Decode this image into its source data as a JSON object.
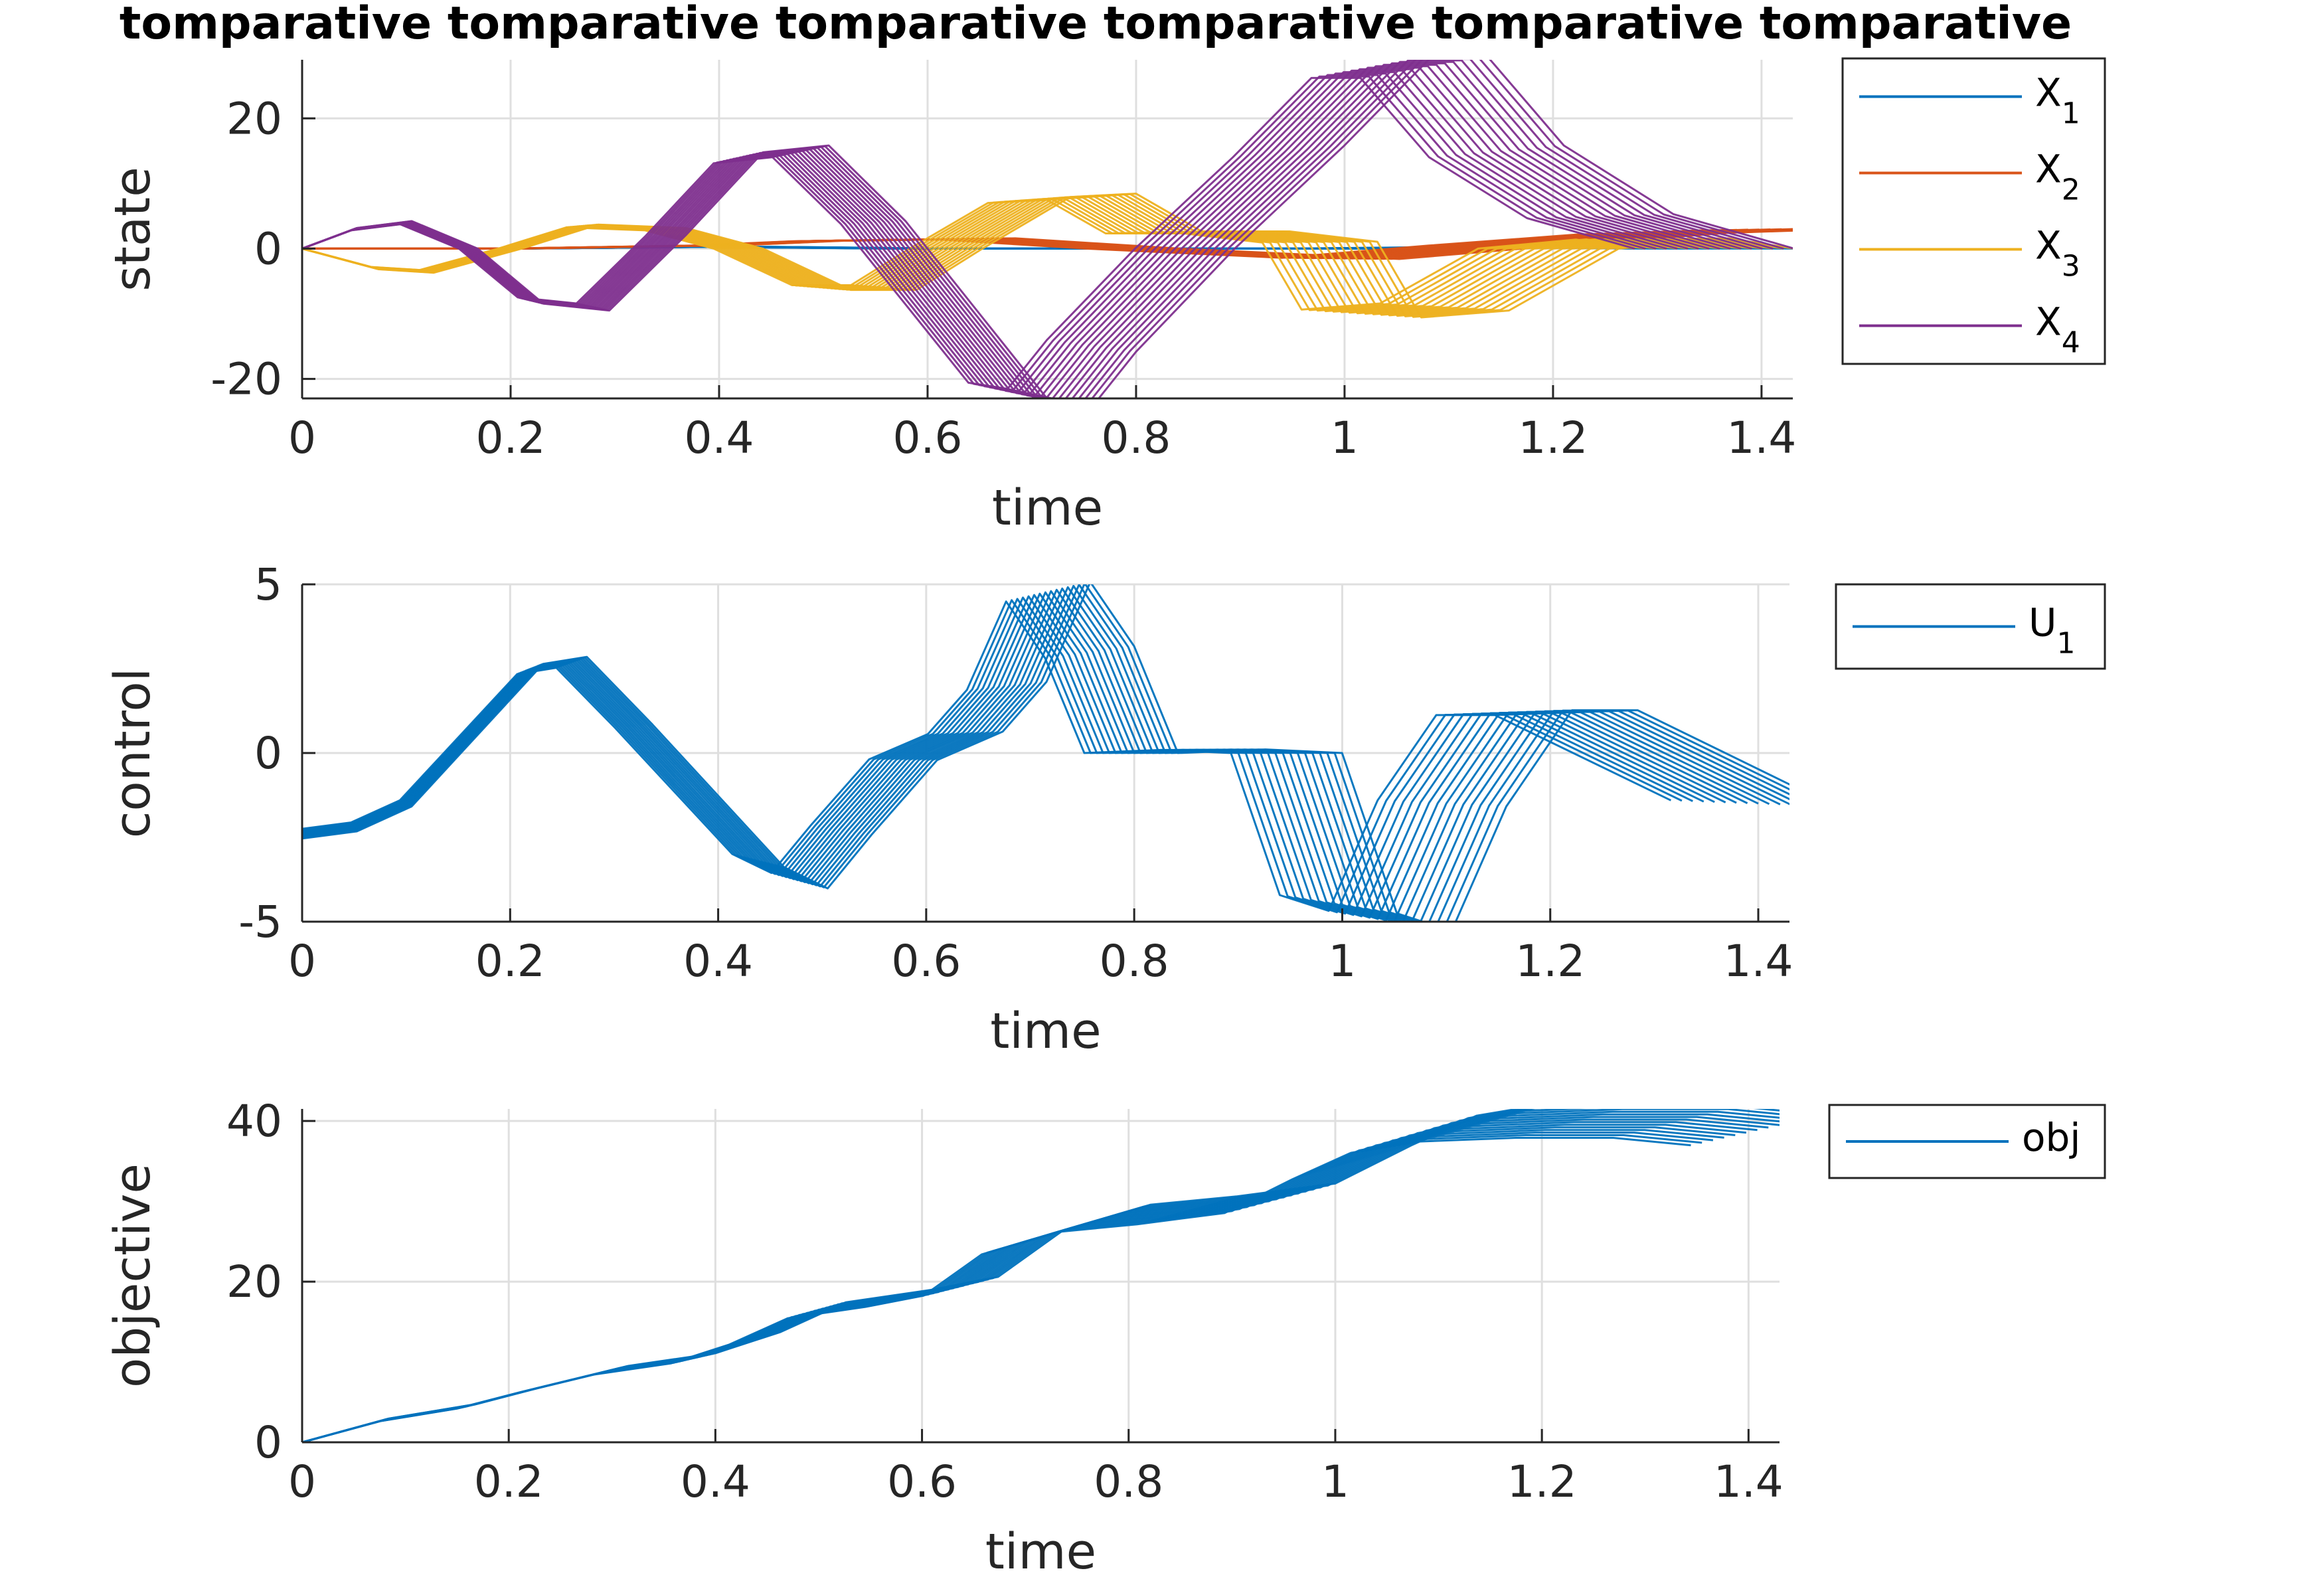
{
  "figure_title": "tomparative tomparative tomparative tomparative tomparative tomparative",
  "chart_data": [
    {
      "type": "line",
      "xlabel": "time",
      "ylabel": "state",
      "xlim": [
        0,
        1.43
      ],
      "ylim": [
        -23,
        29
      ],
      "xticks": [
        0,
        0.2,
        0.4,
        0.6,
        0.8,
        1,
        1.2,
        1.4
      ],
      "yticks": [
        -20,
        0,
        20
      ],
      "xtick_labels": [
        "0",
        "0.2",
        "0.4",
        "0.6",
        "0.8",
        "1",
        "1.2",
        "1.4"
      ],
      "ytick_labels": [
        "-20",
        "0",
        "20"
      ],
      "grid": true,
      "legend_placement": "outside-right",
      "note_traces": "approximately 16 overlapping trajectories per state, each shifted in time",
      "series": [
        {
          "name": "X",
          "sub": "1",
          "color": "#0072BD",
          "x": [
            0,
            0.2,
            0.4,
            0.6,
            0.8,
            1.0,
            1.2,
            1.36
          ],
          "y": [
            0,
            0,
            0.3,
            0,
            0,
            0,
            0.3,
            0
          ]
        },
        {
          "name": "X",
          "sub": "2",
          "color": "#D95319",
          "x": [
            0,
            0.2,
            0.4,
            0.5,
            0.65,
            0.8,
            1.0,
            1.15,
            1.3,
            1.43
          ],
          "y": [
            0,
            0,
            0.5,
            1.2,
            1.5,
            0,
            -1.5,
            0.5,
            2.3,
            3
          ]
        },
        {
          "name": "X",
          "sub": "3",
          "color": "#EDB120",
          "x": [
            0,
            0.07,
            0.12,
            0.2,
            0.27,
            0.35,
            0.42,
            0.5,
            0.56,
            0.62,
            0.7,
            0.76,
            0.82,
            0.9,
            0.98,
            1.02,
            1.1,
            1.2,
            1.3,
            1.36
          ],
          "y": [
            0,
            -3,
            -3.5,
            0,
            3.5,
            3,
            0,
            -6,
            -6,
            0,
            7.5,
            8,
            2.5,
            2.5,
            1,
            -10,
            -9,
            0,
            1.5,
            0
          ]
        },
        {
          "name": "X",
          "sub": "4",
          "color": "#7E2F8E",
          "x": [
            0,
            0.05,
            0.1,
            0.16,
            0.22,
            0.28,
            0.35,
            0.42,
            0.48,
            0.55,
            0.62,
            0.68,
            0.72,
            0.76,
            0.85,
            0.95,
            1.03,
            1.08,
            1.15,
            1.25,
            1.36
          ],
          "y": [
            0,
            3,
            4,
            0,
            -8,
            -9,
            2,
            14,
            15,
            4,
            -10,
            -22,
            -23,
            -15,
            0,
            15,
            28,
            28,
            15,
            5,
            0
          ]
        }
      ]
    },
    {
      "type": "line",
      "xlabel": "time",
      "ylabel": "control",
      "xlim": [
        0,
        1.43
      ],
      "ylim": [
        -5,
        5
      ],
      "xticks": [
        0,
        0.2,
        0.4,
        0.6,
        0.8,
        1,
        1.2,
        1.4
      ],
      "yticks": [
        -5,
        0,
        5
      ],
      "xtick_labels": [
        "0",
        "0.2",
        "0.4",
        "0.6",
        "0.8",
        "1",
        "1.2",
        "1.4"
      ],
      "ytick_labels": [
        "-5",
        "0",
        "5"
      ],
      "grid": true,
      "legend_placement": "outside-right",
      "series": [
        {
          "name": "U",
          "sub": "1",
          "color": "#0072BD",
          "x": [
            0,
            0.05,
            0.1,
            0.16,
            0.22,
            0.26,
            0.32,
            0.38,
            0.44,
            0.48,
            0.52,
            0.58,
            0.64,
            0.68,
            0.72,
            0.76,
            0.8,
            0.88,
            0.95,
            1.0,
            1.05,
            1.1,
            1.16,
            1.22,
            1.3,
            1.4
          ],
          "y": [
            -2.4,
            -2.2,
            -1.5,
            0.5,
            2.5,
            2.7,
            0.8,
            -1.2,
            -3.2,
            -3.8,
            -2.3,
            -0.2,
            0.6,
            2.0,
            4.8,
            3.0,
            0,
            0.1,
            0,
            -4.5,
            -5,
            -1.5,
            1.2,
            1.2,
            0,
            -1.5
          ]
        }
      ]
    },
    {
      "type": "line",
      "xlabel": "time",
      "ylabel": "objective",
      "xlim": [
        0,
        1.43
      ],
      "ylim": [
        0,
        41.5
      ],
      "xticks": [
        0,
        0.2,
        0.4,
        0.6,
        0.8,
        1,
        1.2,
        1.4
      ],
      "yticks": [
        0,
        20,
        40
      ],
      "xtick_labels": [
        "0",
        "0.2",
        "0.4",
        "0.6",
        "0.8",
        "1",
        "1.2",
        "1.4"
      ],
      "ytick_labels": [
        "0",
        "20",
        "40"
      ],
      "grid": true,
      "legend_placement": "outside-right",
      "series": [
        {
          "name": "obj",
          "sub": "",
          "color": "#0072BD",
          "x": [
            0,
            0.08,
            0.16,
            0.22,
            0.3,
            0.38,
            0.44,
            0.5,
            0.58,
            0.64,
            0.7,
            0.78,
            0.86,
            0.95,
            1.02,
            1.08,
            1.15,
            1.25,
            1.35,
            1.43
          ],
          "y": [
            0,
            2.8,
            4.5,
            6.5,
            9,
            10.5,
            13,
            16.5,
            18,
            19.5,
            25,
            28,
            29,
            30.5,
            35,
            38.5,
            40,
            40.5,
            40.5,
            39.5
          ]
        }
      ]
    }
  ]
}
